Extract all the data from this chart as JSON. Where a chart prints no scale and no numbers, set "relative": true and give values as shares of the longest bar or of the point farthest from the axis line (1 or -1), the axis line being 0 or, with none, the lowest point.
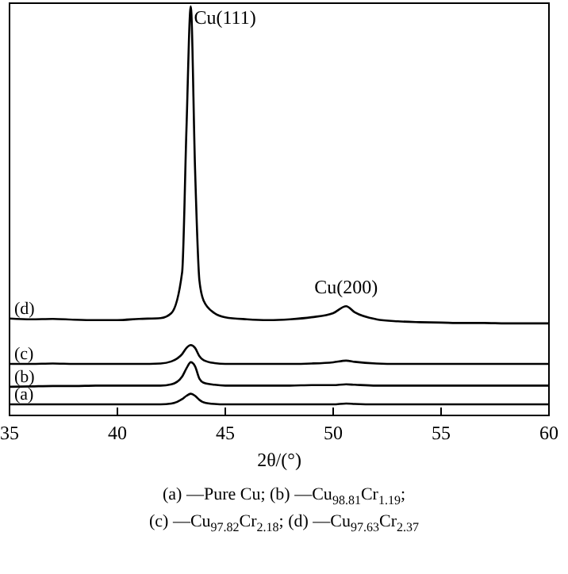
{
  "chart_data": {
    "type": "line",
    "relative": true,
    "xlabel": "2θ/(°)",
    "xlim": [
      35,
      60
    ],
    "xticks": [
      35,
      40,
      45,
      50,
      55,
      60
    ],
    "legend": false,
    "grid": false,
    "marker": "none",
    "line_style": "solid",
    "x": [
      35,
      36,
      37,
      38,
      39,
      40,
      41,
      42,
      42.5,
      43,
      43.2,
      43.4,
      43.6,
      43.8,
      44,
      44.5,
      45,
      46,
      47,
      48,
      49,
      50,
      50.6,
      51,
      52,
      53,
      54,
      55,
      56,
      57,
      58,
      59,
      60
    ],
    "series": [
      {
        "name": "(a)",
        "color": "#000000",
        "values": [
          0.027,
          0.027,
          0.027,
          0.027,
          0.027,
          0.027,
          0.027,
          0.027,
          0.029,
          0.04,
          0.048,
          0.053,
          0.048,
          0.038,
          0.032,
          0.028,
          0.027,
          0.027,
          0.027,
          0.027,
          0.027,
          0.027,
          0.029,
          0.028,
          0.027,
          0.027,
          0.027,
          0.027,
          0.027,
          0.027,
          0.027,
          0.027,
          0.027
        ]
      },
      {
        "name": "(b)",
        "color": "#000000",
        "values": [
          0.07,
          0.071,
          0.072,
          0.072,
          0.073,
          0.073,
          0.073,
          0.073,
          0.076,
          0.095,
          0.115,
          0.13,
          0.12,
          0.09,
          0.08,
          0.075,
          0.073,
          0.073,
          0.073,
          0.073,
          0.074,
          0.074,
          0.076,
          0.075,
          0.073,
          0.073,
          0.073,
          0.073,
          0.073,
          0.073,
          0.073,
          0.073,
          0.073
        ]
      },
      {
        "name": "(c)",
        "color": "#000000",
        "values": [
          0.126,
          0.126,
          0.127,
          0.126,
          0.126,
          0.126,
          0.126,
          0.127,
          0.132,
          0.15,
          0.165,
          0.172,
          0.165,
          0.145,
          0.135,
          0.128,
          0.126,
          0.126,
          0.126,
          0.126,
          0.127,
          0.13,
          0.134,
          0.131,
          0.127,
          0.126,
          0.126,
          0.126,
          0.126,
          0.126,
          0.126,
          0.126,
          0.126
        ]
      },
      {
        "name": "(d)",
        "color": "#000000",
        "values": [
          0.237,
          0.235,
          0.236,
          0.234,
          0.233,
          0.233,
          0.236,
          0.238,
          0.25,
          0.35,
          0.7,
          1.0,
          0.6,
          0.33,
          0.28,
          0.25,
          0.24,
          0.235,
          0.233,
          0.235,
          0.24,
          0.25,
          0.267,
          0.252,
          0.235,
          0.23,
          0.228,
          0.227,
          0.226,
          0.226,
          0.225,
          0.225,
          0.225
        ]
      }
    ],
    "annotations": [
      {
        "text": "Cu(111)",
        "x": 43.4,
        "y": 1
      },
      {
        "text": "Cu(200)",
        "x": 50.6,
        "y": 0.267
      },
      "(a) —Pure Cu; (b) —Cu$_{98.81}$Cr$_{1.19}$;",
      "(c) —Cu$_{97.82}$Cr$_{2.18}$; (d) —Cu$_{97.63}$Cr$_{2.37}$"
    ]
  }
}
